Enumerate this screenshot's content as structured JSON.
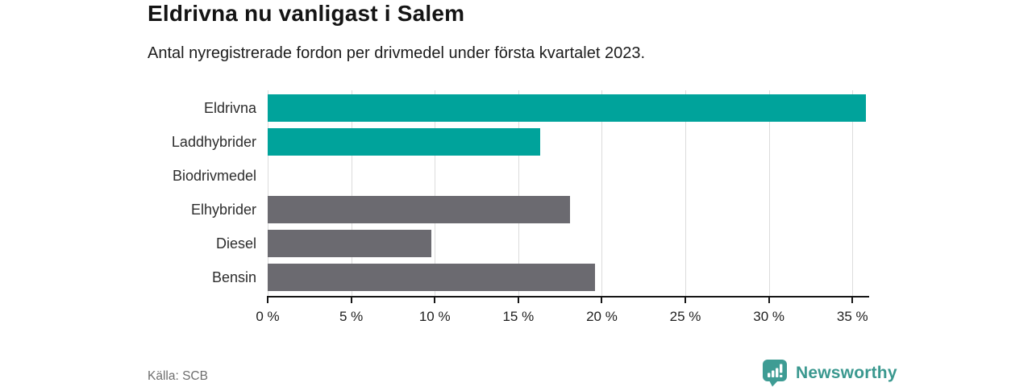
{
  "header": {
    "title": "Eldrivna nu vanligast i Salem",
    "subtitle": "Antal nyregistrerade fordon per drivmedel under första kvartalet 2023."
  },
  "chart_data": {
    "type": "bar",
    "orientation": "horizontal",
    "title": "Eldrivna nu vanligast i Salem",
    "subtitle": "Antal nyregistrerade fordon per drivmedel under första kvartalet 2023.",
    "categories": [
      "Eldrivna",
      "Laddhybrider",
      "Biodrivmedel",
      "Elhybrider",
      "Diesel",
      "Bensin"
    ],
    "values": [
      35.8,
      16.3,
      0,
      18.1,
      9.8,
      19.6
    ],
    "unit": "%",
    "bar_colors": [
      "#00a39b",
      "#00a39b",
      "#6b6a70",
      "#6b6a70",
      "#6b6a70",
      "#6b6a70"
    ],
    "highlight_color": "#00a39b",
    "base_color": "#6b6a70",
    "xlim": [
      0,
      36
    ],
    "xticks": [
      0,
      5,
      10,
      15,
      20,
      25,
      30,
      35
    ],
    "tick_suffix": " %",
    "grid": "vertical",
    "gridline_color": "#dcdcdc",
    "legend": "none"
  },
  "footer": {
    "source": "Källa: SCB",
    "brand": "Newsworthy",
    "brand_color": "#3a988f",
    "brand_icon": "newsworthy-pin-barchart-icon"
  }
}
